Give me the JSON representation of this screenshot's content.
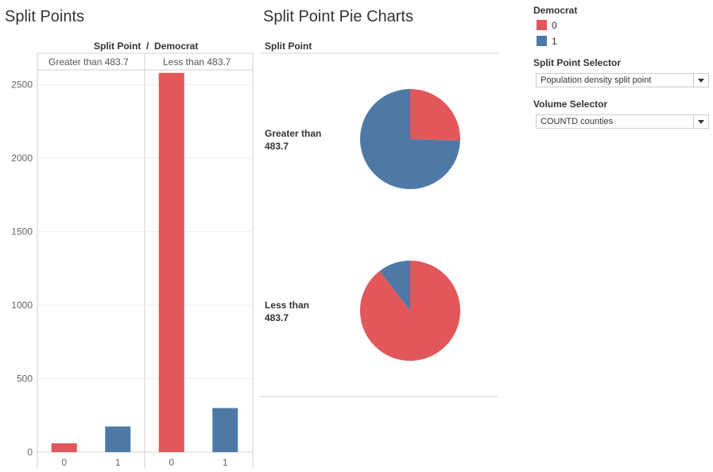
{
  "bar_panel": {
    "title": "Split Points",
    "header": "Split Point  /  Democrat",
    "y_ticks": [
      "2500",
      "2000",
      "1500",
      "1000",
      "500",
      "0"
    ]
  },
  "pie_panel": {
    "title": "Split Point Pie Charts",
    "header": "Split Point",
    "row_labels": [
      {
        "line1": "Greater than",
        "line2": "483.7"
      },
      {
        "line1": "Less than",
        "line2": "483.7"
      }
    ]
  },
  "legend": {
    "title": "Democrat",
    "items": [
      {
        "label": "0",
        "color": "#e1575a"
      },
      {
        "label": "1",
        "color": "#4e79a7"
      }
    ]
  },
  "split_point_selector": {
    "label": "Split Point Selector",
    "value": "Population density split point"
  },
  "volume_selector": {
    "label": "Volume Selector",
    "value": "COUNTD counties"
  },
  "chart_data": [
    {
      "type": "bar",
      "title": "Split Points",
      "panels": [
        {
          "name": "Greater than 483.7",
          "categories": [
            "0",
            "1"
          ],
          "values": [
            60,
            175
          ]
        },
        {
          "name": "Less than 483.7",
          "categories": [
            "0",
            "1"
          ],
          "values": [
            2580,
            300
          ]
        }
      ],
      "colors": {
        "0": "#e1575a",
        "1": "#4e79a7"
      },
      "ylim": [
        0,
        2600
      ],
      "yticks": [
        0,
        500,
        1000,
        1500,
        2000,
        2500
      ]
    },
    {
      "type": "pie",
      "title": "Split Point Pie Charts",
      "pies": [
        {
          "name": "Greater than 483.7",
          "labels": [
            "0",
            "1"
          ],
          "values": [
            60,
            175
          ]
        },
        {
          "name": "Less than 483.7",
          "labels": [
            "0",
            "1"
          ],
          "values": [
            2580,
            300
          ]
        }
      ],
      "colors": {
        "0": "#e1575a",
        "1": "#4e79a7"
      }
    }
  ]
}
